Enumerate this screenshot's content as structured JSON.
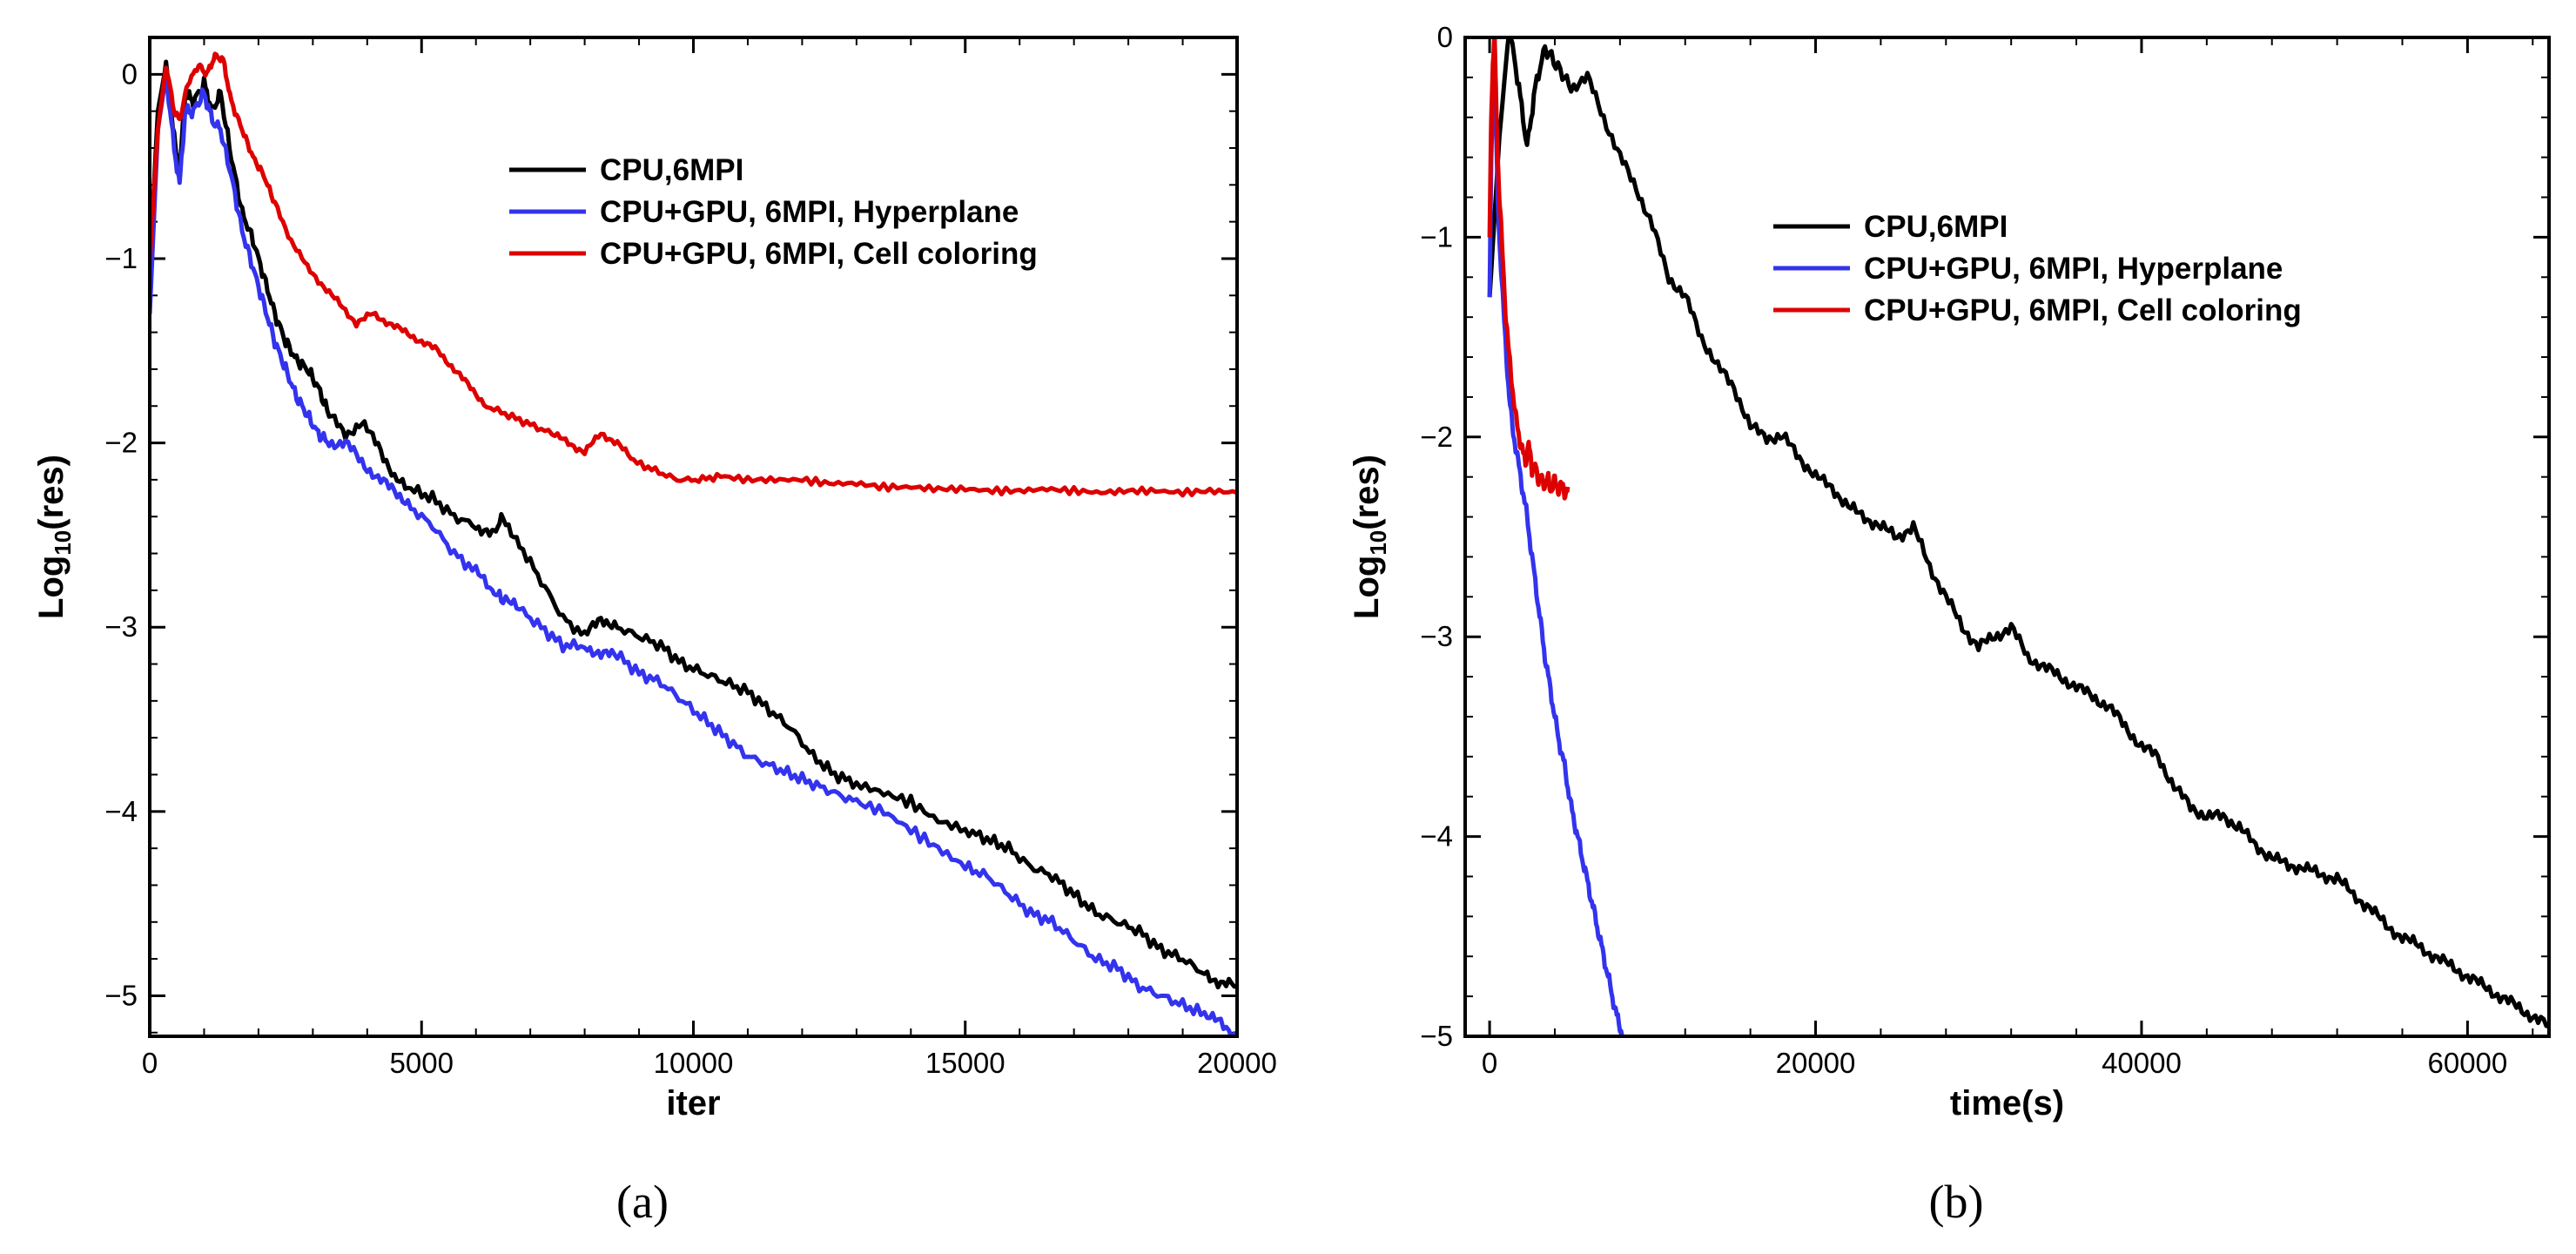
{
  "chart_data": [
    {
      "type": "line",
      "caption": "(a)",
      "xlabel": "iter",
      "ylabel_main": "Log",
      "ylabel_sub": "10",
      "ylabel_tail": "(res)",
      "xlim": [
        0,
        20000
      ],
      "ylim": [
        -5.22,
        0.2
      ],
      "xticks": [
        0,
        5000,
        10000,
        15000,
        20000
      ],
      "xtick_labels": [
        "0",
        "5000",
        "10000",
        "15000",
        "20000"
      ],
      "yticks": [
        0,
        -1,
        -2,
        -3,
        -4,
        -5
      ],
      "ytick_labels": [
        "0",
        "−1",
        "−2",
        "−3",
        "−4",
        "−5"
      ],
      "legend_position": "top-right",
      "series": [
        {
          "name": "CPU,6MPI",
          "color": "#000000",
          "x": [
            0,
            150,
            300,
            450,
            550,
            650,
            800,
            1000,
            1150,
            1300,
            1500,
            1700,
            1900,
            2100,
            2300,
            2500,
            2700,
            2900,
            3100,
            3300,
            3600,
            3900,
            4200,
            4500,
            4800,
            5200,
            5600,
            6000,
            6300,
            6500,
            6800,
            7200,
            7600,
            8000,
            8300,
            8600,
            9000,
            9400,
            9800,
            10200,
            10600,
            11000,
            11400,
            11800,
            12200,
            12600,
            13000,
            13500,
            14000,
            14500,
            15000,
            15400,
            15800,
            16200,
            16600,
            17000,
            17400,
            17800,
            18200,
            18600,
            19000,
            19400,
            19700,
            20000
          ],
          "y": [
            -1.05,
            -0.2,
            0.05,
            -0.35,
            -0.55,
            -0.1,
            -0.15,
            -0.05,
            -0.2,
            -0.1,
            -0.45,
            -0.75,
            -0.9,
            -1.1,
            -1.3,
            -1.45,
            -1.55,
            -1.6,
            -1.7,
            -1.85,
            -1.95,
            -1.9,
            -2.0,
            -2.2,
            -2.25,
            -2.3,
            -2.4,
            -2.45,
            -2.5,
            -2.4,
            -2.55,
            -2.75,
            -2.95,
            -3.05,
            -2.95,
            -3.0,
            -3.05,
            -3.1,
            -3.2,
            -3.25,
            -3.3,
            -3.35,
            -3.45,
            -3.55,
            -3.7,
            -3.8,
            -3.85,
            -3.9,
            -3.95,
            -4.05,
            -4.1,
            -4.15,
            -4.2,
            -4.3,
            -4.35,
            -4.45,
            -4.55,
            -4.6,
            -4.65,
            -4.75,
            -4.8,
            -4.88,
            -4.93,
            -4.95
          ]
        },
        {
          "name": "CPU+GPU, 6MPI, Hyperplane",
          "color": "#3333ee",
          "x": [
            0,
            150,
            300,
            450,
            550,
            650,
            800,
            1000,
            1150,
            1300,
            1500,
            1700,
            1900,
            2100,
            2300,
            2500,
            2700,
            2900,
            3100,
            3300,
            3600,
            3900,
            4200,
            4500,
            4800,
            5200,
            5600,
            6000,
            6300,
            6500,
            6800,
            7200,
            7600,
            8000,
            8300,
            8600,
            9000,
            9400,
            9800,
            10200,
            10600,
            11000,
            11400,
            11800,
            12200,
            12600,
            13000,
            13500,
            14000,
            14500,
            15000,
            15400,
            15800,
            16200,
            16600,
            17000,
            17400,
            17800,
            18200,
            18600,
            19000,
            19400,
            19700,
            20000
          ],
          "y": [
            -1.3,
            -0.3,
            0.0,
            -0.4,
            -0.6,
            -0.2,
            -0.2,
            -0.1,
            -0.25,
            -0.3,
            -0.55,
            -0.85,
            -1.05,
            -1.25,
            -1.45,
            -1.6,
            -1.75,
            -1.85,
            -1.95,
            -2.0,
            -2.0,
            -2.1,
            -2.2,
            -2.25,
            -2.35,
            -2.45,
            -2.6,
            -2.7,
            -2.8,
            -2.85,
            -2.9,
            -3.0,
            -3.1,
            -3.1,
            -3.15,
            -3.15,
            -3.25,
            -3.3,
            -3.4,
            -3.5,
            -3.6,
            -3.7,
            -3.75,
            -3.8,
            -3.85,
            -3.9,
            -3.95,
            -4.0,
            -4.1,
            -4.2,
            -4.3,
            -4.35,
            -4.45,
            -4.55,
            -4.6,
            -4.7,
            -4.8,
            -4.85,
            -4.95,
            -5.0,
            -5.05,
            -5.1,
            -5.15,
            -5.22
          ]
        },
        {
          "name": "CPU+GPU, 6MPI, Cell coloring",
          "color": "#dd0000",
          "x": [
            0,
            150,
            300,
            450,
            550,
            700,
            900,
            1050,
            1200,
            1350,
            1500,
            1700,
            1900,
            2100,
            2300,
            2600,
            2900,
            3200,
            3500,
            3800,
            4100,
            4400,
            4700,
            5000,
            5300,
            5600,
            5900,
            6200,
            6600,
            7000,
            7400,
            7700,
            8000,
            8300,
            8600,
            8900,
            9300,
            9700,
            10100,
            10500,
            11000,
            11500,
            12000,
            12500,
            13000,
            13500,
            14000,
            14500,
            15000,
            15500,
            16000,
            16500,
            17000,
            17500,
            18000,
            18500,
            19000,
            19500,
            20000
          ],
          "y": [
            -1.0,
            -0.3,
            0.05,
            -0.2,
            -0.25,
            -0.05,
            0.05,
            0.0,
            0.1,
            0.08,
            -0.15,
            -0.3,
            -0.45,
            -0.55,
            -0.7,
            -0.9,
            -1.05,
            -1.15,
            -1.25,
            -1.35,
            -1.3,
            -1.35,
            -1.4,
            -1.45,
            -1.5,
            -1.6,
            -1.7,
            -1.8,
            -1.85,
            -1.9,
            -1.95,
            -2.0,
            -2.05,
            -1.95,
            -2.0,
            -2.1,
            -2.15,
            -2.2,
            -2.2,
            -2.18,
            -2.2,
            -2.2,
            -2.2,
            -2.22,
            -2.22,
            -2.24,
            -2.24,
            -2.25,
            -2.25,
            -2.26,
            -2.26,
            -2.25,
            -2.26,
            -2.27,
            -2.26,
            -2.26,
            -2.27,
            -2.26,
            -2.27
          ]
        }
      ]
    },
    {
      "type": "line",
      "caption": "(b)",
      "xlabel": "time(s)",
      "ylabel_main": "Log",
      "ylabel_sub": "10",
      "ylabel_tail": "(res)",
      "xlim": [
        -1500,
        65000
      ],
      "ylim": [
        -5.0,
        0.0
      ],
      "xticks": [
        0,
        20000,
        40000,
        60000
      ],
      "xtick_labels": [
        "0",
        "20000",
        "40000",
        "60000"
      ],
      "yticks": [
        0,
        -1,
        -2,
        -3,
        -4,
        -5
      ],
      "ytick_labels": [
        "0",
        "−1",
        "−2",
        "−3",
        "−4",
        "−5"
      ],
      "legend_position": "top-right",
      "series": [
        {
          "name": "CPU,6MPI",
          "color": "#000000",
          "x": [
            0,
            600,
            1200,
            1800,
            2300,
            2800,
            3400,
            4200,
            5000,
            6000,
            7000,
            8000,
            9000,
            10000,
            11000,
            12000,
            13000,
            14000,
            15000,
            16000,
            17000,
            18000,
            19000,
            20000,
            21000,
            22000,
            23000,
            24000,
            25000,
            26000,
            27000,
            28000,
            29000,
            30000,
            31000,
            32000,
            33000,
            34000,
            35000,
            36000,
            37000,
            38000,
            39000,
            40000,
            41000,
            42000,
            43000,
            44000,
            45000,
            46000,
            47000,
            48000,
            49000,
            50000,
            51000,
            52000,
            53000,
            54000,
            55000,
            56000,
            57000,
            58000,
            59000,
            60000,
            61000,
            62000,
            63000,
            64000,
            65000
          ],
          "y": [
            -1.3,
            -0.5,
            0.05,
            -0.25,
            -0.55,
            -0.25,
            -0.05,
            -0.15,
            -0.25,
            -0.2,
            -0.4,
            -0.6,
            -0.75,
            -0.95,
            -1.2,
            -1.3,
            -1.5,
            -1.65,
            -1.75,
            -1.95,
            -2.0,
            -2.0,
            -2.1,
            -2.2,
            -2.25,
            -2.35,
            -2.4,
            -2.45,
            -2.5,
            -2.45,
            -2.65,
            -2.8,
            -2.95,
            -3.05,
            -3.0,
            -2.95,
            -3.1,
            -3.15,
            -3.2,
            -3.25,
            -3.3,
            -3.35,
            -3.45,
            -3.55,
            -3.6,
            -3.75,
            -3.85,
            -3.9,
            -3.9,
            -3.95,
            -4.05,
            -4.1,
            -4.15,
            -4.15,
            -4.2,
            -4.2,
            -4.3,
            -4.35,
            -4.45,
            -4.5,
            -4.55,
            -4.6,
            -4.65,
            -4.7,
            -4.75,
            -4.8,
            -4.85,
            -4.9,
            -4.95
          ]
        },
        {
          "name": "CPU+GPU, 6MPI, Hyperplane",
          "color": "#3333ee",
          "x": [
            0,
            100,
            200,
            300,
            400,
            500,
            600,
            800,
            1000,
            1200,
            1400,
            1700,
            2000,
            2300,
            2600,
            3000,
            3400,
            3800,
            4200,
            4600,
            5000,
            5400,
            5800,
            6200,
            6600,
            7000,
            7400,
            7800,
            8200
          ],
          "y": [
            -1.3,
            -0.6,
            -0.3,
            0.0,
            -0.5,
            -0.8,
            -1.0,
            -1.3,
            -1.55,
            -1.8,
            -1.95,
            -2.1,
            -2.25,
            -2.4,
            -2.6,
            -2.85,
            -3.1,
            -3.3,
            -3.5,
            -3.65,
            -3.85,
            -4.0,
            -4.15,
            -4.3,
            -4.45,
            -4.6,
            -4.75,
            -4.9,
            -5.0
          ]
        },
        {
          "name": "CPU+GPU, 6MPI, Cell coloring",
          "color": "#dd0000",
          "x": [
            0,
            100,
            200,
            300,
            400,
            500,
            600,
            800,
            1000,
            1200,
            1400,
            1600,
            1800,
            2000,
            2200,
            2400,
            2600,
            2800,
            3000,
            3200,
            3400,
            3600,
            3800,
            4000,
            4200,
            4400,
            4600,
            4800
          ],
          "y": [
            -1.0,
            -0.4,
            -0.15,
            0.0,
            -0.3,
            -0.6,
            -0.8,
            -1.1,
            -1.4,
            -1.6,
            -1.75,
            -1.9,
            -2.0,
            -2.05,
            -2.15,
            -2.0,
            -2.2,
            -2.1,
            -2.25,
            -2.18,
            -2.26,
            -2.2,
            -2.27,
            -2.22,
            -2.26,
            -2.24,
            -2.28,
            -2.25
          ]
        }
      ]
    }
  ]
}
